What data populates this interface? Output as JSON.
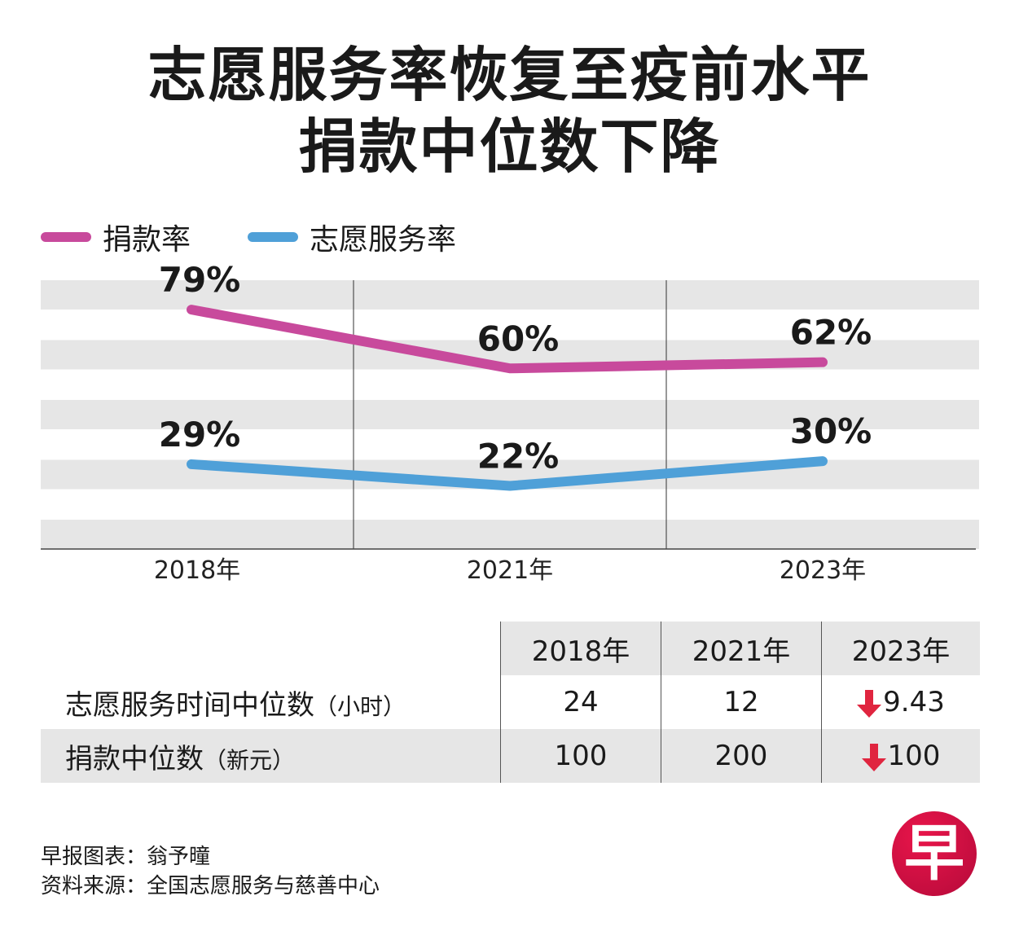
{
  "title_line1": "志愿服务率恢复至疫前水平",
  "title_line2": "捐款中位数下降",
  "colors": {
    "donation": "#c84a9c",
    "volunteer": "#4fa0d8",
    "down_arrow": "#e0253f",
    "stripe": "#e6e6e6"
  },
  "chart_data": {
    "type": "line",
    "categories": [
      "2018年",
      "2021年",
      "2023年"
    ],
    "series": [
      {
        "name": "捐款率",
        "values": [
          79,
          60,
          62
        ],
        "labels": [
          "79%",
          "60%",
          "62%"
        ]
      },
      {
        "name": "志愿服务率",
        "values": [
          29,
          22,
          30
        ],
        "labels": [
          "29%",
          "22%",
          "30%"
        ]
      }
    ],
    "ylim": [
      0,
      88
    ],
    "grid": "horizontal-bands",
    "legend": "top-left"
  },
  "table": {
    "headers": [
      "2018年",
      "2021年",
      "2023年"
    ],
    "rows": [
      {
        "label": "志愿服务时间中位数",
        "unit": "（小时）",
        "values": [
          "24",
          "12",
          "9.43"
        ]
      },
      {
        "label": "捐款中位数",
        "unit": "（新元）",
        "values": [
          "100",
          "200",
          "100"
        ]
      }
    ]
  },
  "credit": {
    "line1": "早报图表：翁予曈",
    "line2": "资料来源：全国志愿服务与慈善中心"
  },
  "logo_text": "早"
}
